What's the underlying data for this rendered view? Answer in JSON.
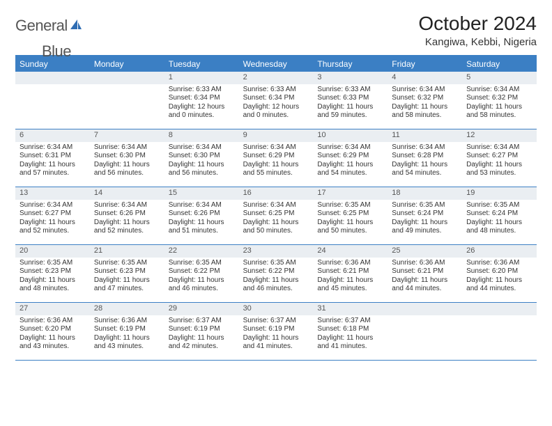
{
  "logo": {
    "word1": "General",
    "word2": "Blue"
  },
  "title": "October 2024",
  "location": "Kangiwa, Kebbi, Nigeria",
  "colors": {
    "header_bg": "#3b7fc4",
    "header_text": "#ffffff",
    "daynum_bg": "#eaeef2",
    "text": "#333333",
    "rule": "#3b7fc4"
  },
  "day_headers": [
    "Sunday",
    "Monday",
    "Tuesday",
    "Wednesday",
    "Thursday",
    "Friday",
    "Saturday"
  ],
  "weeks": [
    [
      {
        "blank": true
      },
      {
        "blank": true
      },
      {
        "day": 1,
        "sunrise": "6:33 AM",
        "sunset": "6:34 PM",
        "daylight": "12 hours and 0 minutes."
      },
      {
        "day": 2,
        "sunrise": "6:33 AM",
        "sunset": "6:34 PM",
        "daylight": "12 hours and 0 minutes."
      },
      {
        "day": 3,
        "sunrise": "6:33 AM",
        "sunset": "6:33 PM",
        "daylight": "11 hours and 59 minutes."
      },
      {
        "day": 4,
        "sunrise": "6:34 AM",
        "sunset": "6:32 PM",
        "daylight": "11 hours and 58 minutes."
      },
      {
        "day": 5,
        "sunrise": "6:34 AM",
        "sunset": "6:32 PM",
        "daylight": "11 hours and 58 minutes."
      }
    ],
    [
      {
        "day": 6,
        "sunrise": "6:34 AM",
        "sunset": "6:31 PM",
        "daylight": "11 hours and 57 minutes."
      },
      {
        "day": 7,
        "sunrise": "6:34 AM",
        "sunset": "6:30 PM",
        "daylight": "11 hours and 56 minutes."
      },
      {
        "day": 8,
        "sunrise": "6:34 AM",
        "sunset": "6:30 PM",
        "daylight": "11 hours and 56 minutes."
      },
      {
        "day": 9,
        "sunrise": "6:34 AM",
        "sunset": "6:29 PM",
        "daylight": "11 hours and 55 minutes."
      },
      {
        "day": 10,
        "sunrise": "6:34 AM",
        "sunset": "6:29 PM",
        "daylight": "11 hours and 54 minutes."
      },
      {
        "day": 11,
        "sunrise": "6:34 AM",
        "sunset": "6:28 PM",
        "daylight": "11 hours and 54 minutes."
      },
      {
        "day": 12,
        "sunrise": "6:34 AM",
        "sunset": "6:27 PM",
        "daylight": "11 hours and 53 minutes."
      }
    ],
    [
      {
        "day": 13,
        "sunrise": "6:34 AM",
        "sunset": "6:27 PM",
        "daylight": "11 hours and 52 minutes."
      },
      {
        "day": 14,
        "sunrise": "6:34 AM",
        "sunset": "6:26 PM",
        "daylight": "11 hours and 52 minutes."
      },
      {
        "day": 15,
        "sunrise": "6:34 AM",
        "sunset": "6:26 PM",
        "daylight": "11 hours and 51 minutes."
      },
      {
        "day": 16,
        "sunrise": "6:34 AM",
        "sunset": "6:25 PM",
        "daylight": "11 hours and 50 minutes."
      },
      {
        "day": 17,
        "sunrise": "6:35 AM",
        "sunset": "6:25 PM",
        "daylight": "11 hours and 50 minutes."
      },
      {
        "day": 18,
        "sunrise": "6:35 AM",
        "sunset": "6:24 PM",
        "daylight": "11 hours and 49 minutes."
      },
      {
        "day": 19,
        "sunrise": "6:35 AM",
        "sunset": "6:24 PM",
        "daylight": "11 hours and 48 minutes."
      }
    ],
    [
      {
        "day": 20,
        "sunrise": "6:35 AM",
        "sunset": "6:23 PM",
        "daylight": "11 hours and 48 minutes."
      },
      {
        "day": 21,
        "sunrise": "6:35 AM",
        "sunset": "6:23 PM",
        "daylight": "11 hours and 47 minutes."
      },
      {
        "day": 22,
        "sunrise": "6:35 AM",
        "sunset": "6:22 PM",
        "daylight": "11 hours and 46 minutes."
      },
      {
        "day": 23,
        "sunrise": "6:35 AM",
        "sunset": "6:22 PM",
        "daylight": "11 hours and 46 minutes."
      },
      {
        "day": 24,
        "sunrise": "6:36 AM",
        "sunset": "6:21 PM",
        "daylight": "11 hours and 45 minutes."
      },
      {
        "day": 25,
        "sunrise": "6:36 AM",
        "sunset": "6:21 PM",
        "daylight": "11 hours and 44 minutes."
      },
      {
        "day": 26,
        "sunrise": "6:36 AM",
        "sunset": "6:20 PM",
        "daylight": "11 hours and 44 minutes."
      }
    ],
    [
      {
        "day": 27,
        "sunrise": "6:36 AM",
        "sunset": "6:20 PM",
        "daylight": "11 hours and 43 minutes."
      },
      {
        "day": 28,
        "sunrise": "6:36 AM",
        "sunset": "6:19 PM",
        "daylight": "11 hours and 43 minutes."
      },
      {
        "day": 29,
        "sunrise": "6:37 AM",
        "sunset": "6:19 PM",
        "daylight": "11 hours and 42 minutes."
      },
      {
        "day": 30,
        "sunrise": "6:37 AM",
        "sunset": "6:19 PM",
        "daylight": "11 hours and 41 minutes."
      },
      {
        "day": 31,
        "sunrise": "6:37 AM",
        "sunset": "6:18 PM",
        "daylight": "11 hours and 41 minutes."
      },
      {
        "blank": true
      },
      {
        "blank": true
      }
    ]
  ],
  "labels": {
    "sunrise": "Sunrise:",
    "sunset": "Sunset:",
    "daylight": "Daylight:"
  }
}
